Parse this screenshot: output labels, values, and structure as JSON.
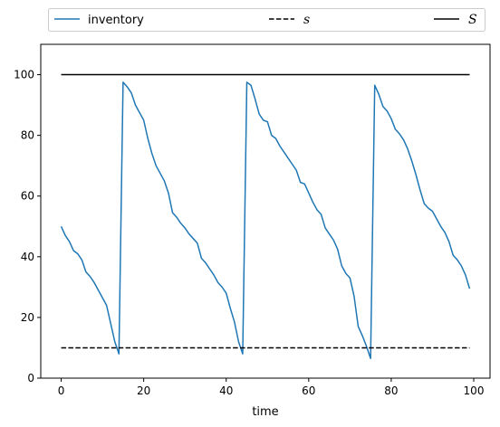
{
  "chart_data": {
    "type": "line",
    "title": "",
    "xlabel": "time",
    "ylabel": "",
    "xlim": [
      -4.95,
      103.95
    ],
    "ylim": [
      0,
      110
    ],
    "xticks": [
      0,
      20,
      40,
      60,
      80,
      100
    ],
    "yticks": [
      0,
      20,
      40,
      60,
      80,
      100
    ],
    "grid": false,
    "legend_placement": "top, outside, horizontal",
    "series": [
      {
        "name": "inventory",
        "color": "#1f77b4",
        "style": "solid",
        "x": [
          0,
          1,
          2,
          3,
          4,
          5,
          6,
          7,
          8,
          9,
          10,
          11,
          12,
          13,
          14,
          15,
          16,
          17,
          18,
          19,
          20,
          21,
          22,
          23,
          24,
          25,
          26,
          27,
          28,
          29,
          30,
          31,
          32,
          33,
          34,
          35,
          36,
          37,
          38,
          39,
          40,
          41,
          42,
          43,
          44,
          45,
          46,
          47,
          48,
          49,
          50,
          51,
          52,
          53,
          54,
          55,
          56,
          57,
          58,
          59,
          60,
          61,
          62,
          63,
          64,
          65,
          66,
          67,
          68,
          69,
          70,
          71,
          72,
          73,
          74,
          75,
          76,
          77,
          78,
          79,
          80,
          81,
          82,
          83,
          84,
          85,
          86,
          87,
          88,
          89,
          90,
          91,
          92,
          93,
          94,
          95,
          96,
          97,
          98,
          99
        ],
        "y": [
          50,
          47,
          45,
          42,
          41,
          39,
          35,
          33.5,
          31.5,
          29,
          26.5,
          24,
          18,
          12,
          8,
          97.5,
          96,
          94,
          90,
          87.5,
          85,
          79,
          74,
          70,
          67.5,
          65,
          61,
          54.5,
          53,
          51,
          49.5,
          47.5,
          46,
          44.5,
          39.5,
          38,
          36,
          34,
          31.5,
          30,
          28,
          23,
          18.5,
          12,
          8,
          97.5,
          96.5,
          92,
          87,
          85,
          84.5,
          80,
          79,
          76.5,
          74.5,
          72.5,
          70.5,
          68.5,
          64.5,
          64,
          61,
          58,
          55.5,
          54,
          49.5,
          47.5,
          45.5,
          42.5,
          37,
          34.5,
          33,
          27,
          17,
          14,
          10.5,
          6.5,
          96.5,
          93.5,
          89.5,
          88,
          85.5,
          82,
          80.5,
          78.5,
          75.5,
          71.5,
          67,
          62,
          57.5,
          56,
          55,
          52.5,
          50,
          48,
          45,
          40.5,
          39,
          37,
          34,
          29.5
        ]
      },
      {
        "name": "s",
        "color": "#000000",
        "style": "dashed",
        "x": [
          0,
          99
        ],
        "y": [
          10,
          10
        ]
      },
      {
        "name": "S",
        "color": "#000000",
        "style": "solid",
        "x": [
          0,
          99
        ],
        "y": [
          100,
          100
        ]
      }
    ]
  }
}
